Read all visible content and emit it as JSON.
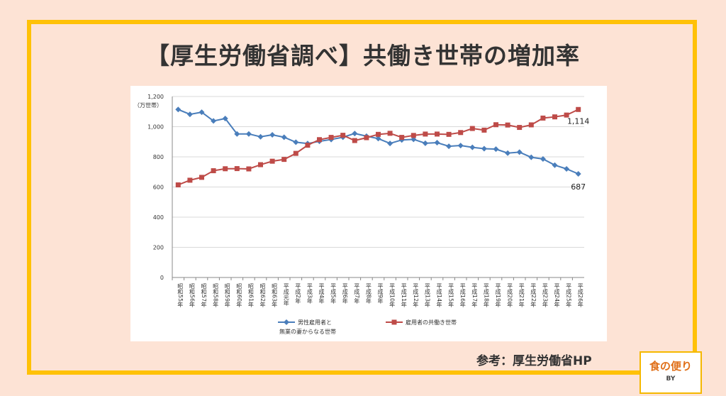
{
  "page": {
    "title": "【厚生労働省調べ】共働き世帯の増加率",
    "source": "参考：厚生労働省HP",
    "logo_main": "食の便り",
    "logo_sub": "BY"
  },
  "chart_data": {
    "type": "line",
    "ylabel": "（万世帯）",
    "ylim": [
      0,
      1200
    ],
    "yticks": [
      0,
      200,
      400,
      600,
      800,
      1000,
      1200
    ],
    "ytick_labels": [
      "0",
      "200",
      "400",
      "600",
      "800",
      "1,000",
      "1,200"
    ],
    "grid": true,
    "legend": "bottom",
    "categories": [
      "昭和55年",
      "昭和56年",
      "昭和57年",
      "昭和58年",
      "昭和59年",
      "昭和60年",
      "昭和61年",
      "昭和62年",
      "昭和63年",
      "平成元年",
      "平成2年",
      "平成3年",
      "平成4年",
      "平成5年",
      "平成6年",
      "平成7年",
      "平成8年",
      "平成9年",
      "平成10年",
      "平成11年",
      "平成12年",
      "平成13年",
      "平成14年",
      "平成15年",
      "平成16年",
      "平成17年",
      "平成18年",
      "平成19年",
      "平成20年",
      "平成21年",
      "平成22年",
      "平成23年",
      "平成24年",
      "平成25年",
      "平成26年"
    ],
    "series": [
      {
        "name": "男性雇用者と無業の妻からなる世帯",
        "legend_lines": [
          "男性雇用者と",
          "無業の妻からなる世帯"
        ],
        "color": "#4a7ebb",
        "marker": "diamond",
        "values": [
          1114,
          1082,
          1096,
          1038,
          1054,
          952,
          952,
          933,
          946,
          930,
          897,
          888,
          903,
          915,
          930,
          955,
          937,
          921,
          889,
          912,
          916,
          890,
          894,
          870,
          875,
          863,
          854,
          851,
          825,
          831,
          797,
          786,
          745,
          720,
          687
        ],
        "end_label": "687"
      },
      {
        "name": "雇用者の共働き世帯",
        "legend_lines": [
          "雇用者の共働き世帯"
        ],
        "color": "#be4b48",
        "marker": "square",
        "values": [
          614,
          645,
          664,
          708,
          721,
          722,
          720,
          748,
          771,
          783,
          823,
          877,
          914,
          929,
          943,
          908,
          927,
          949,
          956,
          929,
          942,
          951,
          951,
          949,
          961,
          988,
          977,
          1013,
          1011,
          995,
          1012,
          1057,
          1065,
          1077,
          1114
        ],
        "end_label": "1,114"
      }
    ]
  }
}
